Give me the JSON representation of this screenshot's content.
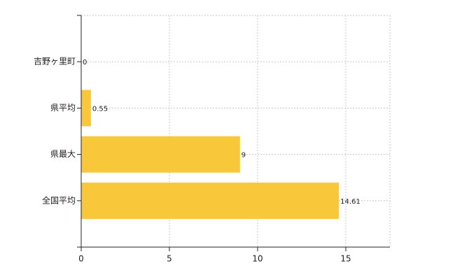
{
  "chart_data": {
    "type": "bar",
    "orientation": "horizontal",
    "categories": [
      "吉野ヶ里町",
      "県平均",
      "県最大",
      "全国平均"
    ],
    "values": [
      0,
      0.55,
      9,
      14.61
    ],
    "color": "#f9c73a",
    "xlim": [
      0,
      17.5
    ],
    "xticks": [
      0,
      5,
      10,
      15
    ],
    "grid": true
  }
}
